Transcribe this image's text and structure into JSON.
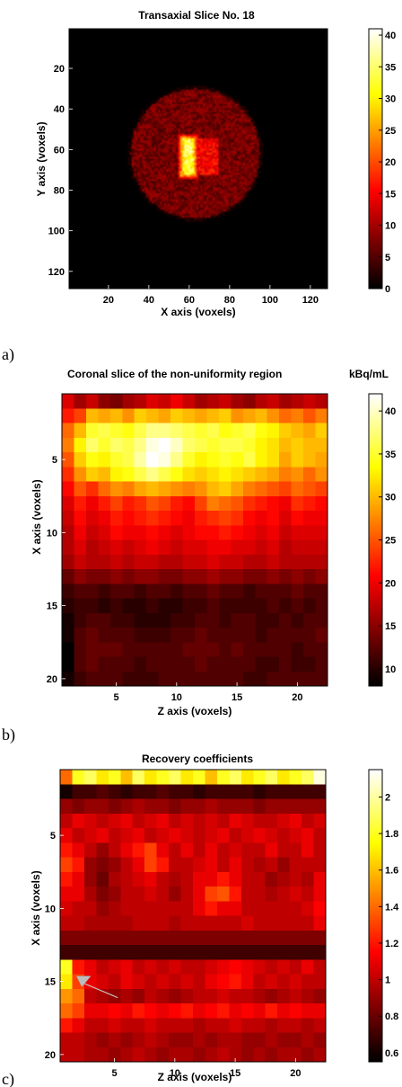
{
  "chart_data": [
    {
      "type": "heatmap",
      "panel_label": "a)",
      "title": "Transaxial Slice No. 18",
      "xlabel": "X axis (voxels)",
      "ylabel": "Y axis (voxels)",
      "xlim": [
        1,
        128
      ],
      "ylim": [
        1,
        128
      ],
      "x_ticks": [
        20,
        40,
        60,
        80,
        100,
        120
      ],
      "y_ticks": [
        20,
        40,
        60,
        80,
        100,
        120
      ],
      "colorbar": {
        "min": 0,
        "max": 41,
        "ticks": [
          0,
          5,
          10,
          15,
          20,
          25,
          30,
          35,
          40
        ],
        "unit": ""
      },
      "features": {
        "background_value": 0,
        "phantom": {
          "center_x": 63,
          "center_y": 62,
          "radius": 32,
          "value": 7
        },
        "hot_insert": {
          "x_min": 55,
          "x_max": 64,
          "y_min": 53,
          "y_max": 74,
          "value": 40
        },
        "warm_insert": {
          "x_min": 64,
          "x_max": 74,
          "y_min": 55,
          "y_max": 72,
          "value": 15
        }
      }
    },
    {
      "type": "heatmap",
      "panel_label": "b)",
      "title": "Coronal slice of the non-uniformity region",
      "unit_label": "kBq/mL",
      "xlabel": "Z axis (voxels)",
      "ylabel": "X axis (voxels)",
      "xlim": [
        1,
        22
      ],
      "ylim": [
        1,
        20
      ],
      "x_ticks": [
        5,
        10,
        15,
        20
      ],
      "y_ticks": [
        5,
        10,
        15,
        20
      ],
      "colorbar": {
        "min": 8,
        "max": 42,
        "ticks": [
          10,
          15,
          20,
          25,
          30,
          35,
          40
        ]
      },
      "values": [
        [
          19,
          16,
          18,
          15,
          14,
          16,
          17,
          19,
          18,
          20,
          18,
          16,
          17,
          18,
          16,
          15,
          17,
          18,
          16,
          17,
          18,
          17
        ],
        [
          22,
          24,
          30,
          29,
          30,
          28,
          31,
          30,
          29,
          31,
          30,
          29,
          30,
          31,
          28,
          29,
          30,
          28,
          26,
          27,
          25,
          27
        ],
        [
          26,
          30,
          35,
          36,
          35,
          34,
          36,
          38,
          38,
          37,
          36,
          35,
          36,
          34,
          35,
          36,
          34,
          33,
          31,
          30,
          29,
          31
        ],
        [
          27,
          33,
          37,
          35,
          37,
          36,
          38,
          41,
          42,
          40,
          37,
          36,
          35,
          36,
          36,
          35,
          33,
          32,
          30,
          31,
          30,
          30
        ],
        [
          25,
          31,
          34,
          33,
          35,
          36,
          39,
          42,
          41,
          38,
          35,
          33,
          34,
          35,
          34,
          36,
          33,
          32,
          29,
          31,
          30,
          29
        ],
        [
          23,
          28,
          31,
          30,
          33,
          34,
          36,
          38,
          36,
          34,
          32,
          31,
          32,
          33,
          32,
          31,
          30,
          29,
          27,
          28,
          26,
          28
        ],
        [
          21,
          25,
          23,
          26,
          28,
          27,
          29,
          30,
          29,
          28,
          27,
          28,
          30,
          31,
          29,
          27,
          26,
          25,
          24,
          26,
          25,
          24
        ],
        [
          19,
          22,
          20,
          22,
          24,
          22,
          23,
          25,
          24,
          22,
          21,
          24,
          27,
          26,
          25,
          23,
          22,
          21,
          20,
          23,
          22,
          21
        ],
        [
          18,
          21,
          19,
          20,
          22,
          21,
          22,
          23,
          22,
          21,
          20,
          22,
          23,
          24,
          23,
          21,
          20,
          21,
          19,
          21,
          20,
          20
        ],
        [
          17,
          20,
          18,
          19,
          21,
          20,
          20,
          21,
          20,
          19,
          20,
          21,
          21,
          22,
          21,
          20,
          19,
          20,
          18,
          19,
          19,
          19
        ],
        [
          17,
          19,
          17,
          18,
          19,
          18,
          19,
          20,
          19,
          18,
          19,
          19,
          20,
          20,
          19,
          19,
          18,
          19,
          17,
          18,
          18,
          18
        ],
        [
          16,
          18,
          17,
          17,
          18,
          17,
          18,
          18,
          17,
          17,
          18,
          18,
          19,
          18,
          18,
          17,
          17,
          18,
          17,
          17,
          17,
          17
        ],
        [
          13,
          15,
          14,
          14,
          15,
          14,
          15,
          15,
          14,
          14,
          15,
          15,
          16,
          15,
          15,
          14,
          14,
          15,
          14,
          15,
          14,
          15
        ],
        [
          11,
          12,
          12,
          11,
          12,
          12,
          11,
          12,
          12,
          11,
          12,
          12,
          13,
          12,
          12,
          11,
          12,
          12,
          12,
          13,
          12,
          12
        ],
        [
          10,
          11,
          11,
          10,
          11,
          10,
          10,
          11,
          10,
          10,
          11,
          11,
          12,
          11,
          11,
          11,
          11,
          12,
          11,
          12,
          11,
          12
        ],
        [
          9,
          11,
          12,
          12,
          11,
          11,
          10,
          10,
          10,
          11,
          11,
          12,
          12,
          11,
          12,
          12,
          11,
          11,
          12,
          11,
          12,
          12
        ],
        [
          9,
          12,
          13,
          12,
          12,
          12,
          11,
          11,
          11,
          12,
          12,
          13,
          12,
          12,
          12,
          12,
          11,
          12,
          12,
          12,
          12,
          13
        ],
        [
          8,
          12,
          13,
          13,
          13,
          12,
          12,
          12,
          12,
          12,
          13,
          13,
          13,
          12,
          13,
          12,
          12,
          12,
          12,
          11,
          12,
          12
        ],
        [
          8,
          12,
          13,
          12,
          12,
          12,
          11,
          12,
          12,
          12,
          12,
          13,
          12,
          12,
          12,
          12,
          11,
          11,
          12,
          11,
          11,
          12
        ],
        [
          9,
          11,
          12,
          12,
          12,
          11,
          11,
          11,
          12,
          12,
          12,
          12,
          12,
          12,
          12,
          11,
          11,
          12,
          12,
          12,
          12,
          12
        ]
      ]
    },
    {
      "type": "heatmap",
      "panel_label": "c)",
      "title": "Recovery coefficients",
      "xlabel": "Z axis (voxels)",
      "ylabel": "X axis (voxels)",
      "xlim": [
        1,
        22
      ],
      "ylim": [
        1,
        20
      ],
      "x_ticks": [
        5,
        10,
        15,
        20
      ],
      "y_ticks": [
        5,
        10,
        15,
        20
      ],
      "colorbar": {
        "min": 0.55,
        "max": 2.15,
        "ticks": [
          0.6,
          0.8,
          1,
          1.2,
          1.4,
          1.6,
          1.8,
          2
        ]
      },
      "values": [
        [
          1.4,
          1.8,
          1.9,
          1.7,
          1.8,
          1.6,
          1.9,
          1.7,
          1.8,
          1.9,
          1.7,
          1.8,
          1.6,
          1.8,
          1.9,
          1.7,
          1.8,
          1.9,
          1.7,
          1.8,
          1.9,
          2.1
        ],
        [
          0.6,
          0.7,
          0.7,
          0.75,
          0.7,
          0.65,
          0.7,
          0.7,
          0.75,
          0.7,
          0.7,
          0.65,
          0.7,
          0.7,
          0.7,
          0.7,
          0.65,
          0.7,
          0.7,
          0.7,
          0.7,
          0.7
        ],
        [
          0.9,
          0.85,
          0.9,
          0.9,
          0.85,
          0.9,
          0.95,
          0.9,
          0.9,
          0.85,
          0.9,
          0.9,
          0.95,
          0.9,
          0.9,
          0.9,
          0.85,
          0.9,
          0.9,
          0.9,
          0.9,
          0.9
        ],
        [
          1.0,
          1.1,
          1.05,
          1.0,
          1.05,
          1.1,
          1.0,
          1.05,
          1.1,
          1.0,
          1.05,
          1.0,
          1.05,
          1.0,
          1.1,
          1.05,
          1.0,
          1.0,
          1.05,
          1.1,
          1.0,
          1.05
        ],
        [
          1.1,
          1.0,
          1.05,
          1.1,
          1.0,
          1.05,
          1.1,
          1.0,
          1.05,
          1.1,
          1.05,
          1.0,
          1.05,
          1.1,
          1.0,
          1.05,
          1.1,
          1.05,
          1.0,
          1.05,
          1.1,
          1.0
        ],
        [
          1.2,
          1.1,
          1.0,
          0.9,
          1.0,
          1.1,
          1.2,
          1.3,
          1.1,
          1.0,
          1.1,
          1.0,
          1.1,
          1.0,
          1.05,
          1.0,
          1.0,
          1.1,
          1.0,
          1.0,
          1.1,
          1.0
        ],
        [
          1.3,
          1.2,
          0.9,
          0.85,
          0.9,
          1.0,
          1.1,
          1.3,
          1.2,
          1.0,
          1.0,
          1.05,
          1.1,
          1.0,
          1.1,
          1.0,
          0.95,
          1.0,
          0.9,
          1.0,
          1.0,
          1.0
        ],
        [
          1.2,
          1.1,
          0.9,
          0.8,
          0.95,
          1.0,
          1.05,
          1.1,
          1.0,
          0.95,
          1.0,
          1.1,
          1.1,
          1.2,
          1.1,
          1.0,
          1.0,
          0.9,
          0.95,
          1.0,
          0.95,
          1.1
        ],
        [
          1.1,
          1.1,
          0.95,
          0.85,
          0.9,
          1.0,
          1.0,
          1.05,
          1.0,
          0.9,
          1.0,
          1.1,
          1.3,
          1.35,
          1.2,
          1.0,
          1.0,
          0.95,
          1.0,
          1.05,
          1.0,
          1.1
        ],
        [
          1.05,
          1.0,
          1.0,
          0.9,
          0.95,
          1.0,
          1.0,
          1.0,
          1.0,
          1.0,
          1.0,
          1.1,
          1.2,
          1.1,
          1.1,
          1.0,
          1.0,
          1.0,
          1.0,
          1.0,
          1.05,
          1.15
        ],
        [
          1.0,
          1.0,
          0.95,
          0.95,
          0.95,
          0.95,
          1.0,
          1.0,
          1.0,
          0.95,
          1.0,
          1.0,
          1.0,
          1.0,
          1.0,
          1.05,
          1.0,
          1.0,
          1.0,
          1.0,
          1.0,
          1.1
        ],
        [
          0.85,
          0.85,
          0.85,
          0.85,
          0.85,
          0.85,
          0.85,
          0.85,
          0.85,
          0.85,
          0.85,
          0.85,
          0.85,
          0.85,
          0.85,
          0.85,
          0.85,
          0.85,
          0.85,
          0.85,
          0.85,
          0.85
        ],
        [
          0.7,
          0.7,
          0.7,
          0.7,
          0.7,
          0.7,
          0.7,
          0.7,
          0.7,
          0.7,
          0.7,
          0.7,
          0.7,
          0.7,
          0.7,
          0.7,
          0.7,
          0.7,
          0.7,
          0.7,
          0.7,
          0.7
        ],
        [
          1.8,
          1.2,
          1.1,
          1.0,
          1.05,
          1.1,
          1.0,
          1.05,
          1.0,
          1.05,
          1.0,
          1.0,
          1.05,
          1.1,
          1.15,
          1.1,
          1.05,
          1.0,
          1.05,
          1.0,
          1.1,
          1.0
        ],
        [
          1.7,
          1.3,
          1.1,
          1.05,
          1.0,
          1.1,
          1.05,
          1.0,
          1.05,
          1.0,
          1.05,
          1.0,
          1.1,
          1.15,
          1.2,
          1.1,
          1.0,
          1.05,
          1.0,
          1.05,
          1.0,
          1.0
        ],
        [
          1.5,
          1.4,
          1.0,
          0.95,
          0.9,
          0.95,
          0.9,
          1.0,
          0.95,
          0.9,
          0.95,
          1.0,
          1.0,
          1.05,
          1.0,
          1.0,
          0.95,
          0.9,
          0.95,
          1.0,
          0.95,
          0.9
        ],
        [
          1.4,
          1.3,
          1.1,
          1.1,
          1.15,
          1.1,
          1.2,
          1.15,
          1.1,
          1.15,
          1.2,
          1.1,
          1.15,
          1.2,
          1.1,
          1.15,
          1.1,
          1.2,
          1.1,
          1.15,
          1.1,
          1.1
        ],
        [
          1.2,
          1.1,
          1.0,
          1.0,
          1.05,
          1.0,
          1.0,
          1.05,
          1.0,
          1.0,
          1.0,
          0.95,
          1.0,
          1.0,
          1.05,
          1.0,
          1.0,
          0.95,
          1.0,
          1.0,
          0.95,
          1.0
        ],
        [
          1.0,
          1.0,
          0.95,
          0.9,
          0.95,
          0.9,
          0.95,
          1.0,
          0.95,
          0.9,
          0.9,
          0.95,
          0.9,
          0.95,
          0.95,
          0.9,
          0.9,
          0.95,
          0.9,
          0.9,
          0.95,
          0.9
        ],
        [
          1.0,
          1.0,
          0.95,
          0.95,
          0.9,
          0.95,
          1.0,
          0.95,
          0.9,
          0.95,
          0.95,
          0.9,
          0.95,
          1.0,
          0.95,
          0.9,
          0.95,
          0.9,
          0.95,
          0.95,
          0.9,
          0.95
        ]
      ],
      "annotation": {
        "type": "arrow",
        "points_to": {
          "x": 2,
          "y": 15
        }
      }
    }
  ]
}
